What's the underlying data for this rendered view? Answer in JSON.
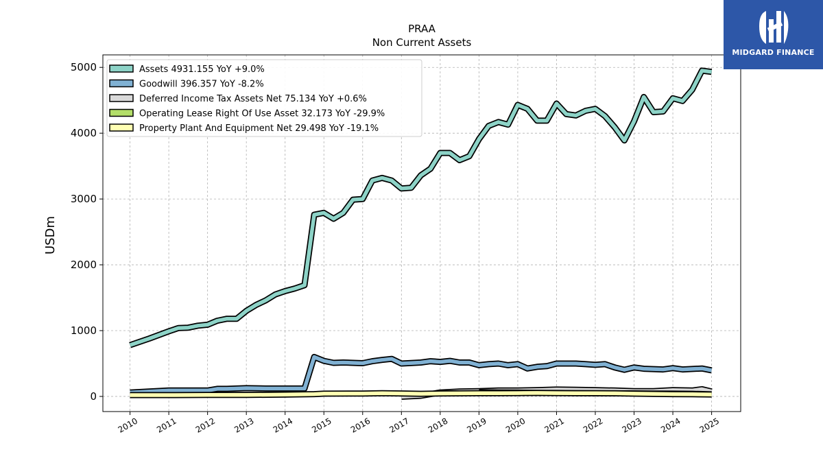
{
  "chart_data": {
    "type": "line",
    "title": "PRAA",
    "subtitle": "Non Current  Assets",
    "ylabel": "USDm",
    "ylim": [
      -230,
      5190
    ],
    "xlim": [
      2009.3,
      2025.75
    ],
    "yticks": [
      0,
      1000,
      2000,
      3000,
      4000,
      5000
    ],
    "xticks": [
      "2010",
      "2011",
      "2012",
      "2013",
      "2014",
      "2015",
      "2016",
      "2017",
      "2018",
      "2019",
      "2020",
      "2021",
      "2022",
      "2023",
      "2024",
      "2025"
    ],
    "grid": true,
    "legend_position": "upper-left",
    "series": [
      {
        "name": "Assets  4931.155 YoY +9.0%",
        "color": "#8dd3c7",
        "points": [
          [
            2010.0,
            780
          ],
          [
            2010.5,
            880
          ],
          [
            2011.0,
            990
          ],
          [
            2011.25,
            1040
          ],
          [
            2011.5,
            1045
          ],
          [
            2011.75,
            1075
          ],
          [
            2012.0,
            1090
          ],
          [
            2012.25,
            1150
          ],
          [
            2012.5,
            1180
          ],
          [
            2012.75,
            1180
          ],
          [
            2013.0,
            1300
          ],
          [
            2013.25,
            1390
          ],
          [
            2013.5,
            1460
          ],
          [
            2013.75,
            1550
          ],
          [
            2014.0,
            1600
          ],
          [
            2014.25,
            1640
          ],
          [
            2014.5,
            1690
          ],
          [
            2014.75,
            2760
          ],
          [
            2015.0,
            2790
          ],
          [
            2015.25,
            2700
          ],
          [
            2015.5,
            2790
          ],
          [
            2015.75,
            2990
          ],
          [
            2016.0,
            3000
          ],
          [
            2016.25,
            3280
          ],
          [
            2016.5,
            3320
          ],
          [
            2016.75,
            3280
          ],
          [
            2017.0,
            3160
          ],
          [
            2017.25,
            3170
          ],
          [
            2017.5,
            3360
          ],
          [
            2017.75,
            3460
          ],
          [
            2018.0,
            3700
          ],
          [
            2018.25,
            3700
          ],
          [
            2018.5,
            3590
          ],
          [
            2018.75,
            3650
          ],
          [
            2019.0,
            3910
          ],
          [
            2019.25,
            4110
          ],
          [
            2019.5,
            4170
          ],
          [
            2019.75,
            4130
          ],
          [
            2020.0,
            4430
          ],
          [
            2020.25,
            4370
          ],
          [
            2020.5,
            4190
          ],
          [
            2020.75,
            4190
          ],
          [
            2021.0,
            4450
          ],
          [
            2021.25,
            4290
          ],
          [
            2021.5,
            4270
          ],
          [
            2021.75,
            4340
          ],
          [
            2022.0,
            4370
          ],
          [
            2022.25,
            4260
          ],
          [
            2022.5,
            4090
          ],
          [
            2022.75,
            3890
          ],
          [
            2023.0,
            4180
          ],
          [
            2023.25,
            4550
          ],
          [
            2023.5,
            4320
          ],
          [
            2023.75,
            4330
          ],
          [
            2024.0,
            4530
          ],
          [
            2024.25,
            4490
          ],
          [
            2024.5,
            4660
          ],
          [
            2024.75,
            4950
          ],
          [
            2025.0,
            4931
          ]
        ]
      },
      {
        "name": "Goodwill  396.357 YoY -8.2%",
        "color": "#80b1d3",
        "points": [
          [
            2010.0,
            60
          ],
          [
            2010.5,
            75
          ],
          [
            2011.0,
            90
          ],
          [
            2011.5,
            90
          ],
          [
            2012.0,
            90
          ],
          [
            2012.25,
            115
          ],
          [
            2012.5,
            115
          ],
          [
            2013.0,
            125
          ],
          [
            2013.5,
            120
          ],
          [
            2014.0,
            120
          ],
          [
            2014.5,
            120
          ],
          [
            2014.75,
            600
          ],
          [
            2015.0,
            540
          ],
          [
            2015.25,
            510
          ],
          [
            2015.5,
            515
          ],
          [
            2015.75,
            510
          ],
          [
            2016.0,
            505
          ],
          [
            2016.25,
            535
          ],
          [
            2016.5,
            555
          ],
          [
            2016.75,
            570
          ],
          [
            2017.0,
            500
          ],
          [
            2017.5,
            515
          ],
          [
            2017.75,
            535
          ],
          [
            2018.0,
            525
          ],
          [
            2018.25,
            540
          ],
          [
            2018.5,
            515
          ],
          [
            2018.75,
            515
          ],
          [
            2019.0,
            475
          ],
          [
            2019.25,
            490
          ],
          [
            2019.5,
            500
          ],
          [
            2019.75,
            475
          ],
          [
            2020.0,
            490
          ],
          [
            2020.25,
            425
          ],
          [
            2020.5,
            450
          ],
          [
            2020.75,
            460
          ],
          [
            2021.0,
            500
          ],
          [
            2021.5,
            500
          ],
          [
            2021.75,
            490
          ],
          [
            2022.0,
            480
          ],
          [
            2022.25,
            490
          ],
          [
            2022.5,
            440
          ],
          [
            2022.75,
            405
          ],
          [
            2023.0,
            440
          ],
          [
            2023.25,
            420
          ],
          [
            2023.75,
            410
          ],
          [
            2024.0,
            430
          ],
          [
            2024.25,
            410
          ],
          [
            2024.75,
            425
          ],
          [
            2025.0,
            396
          ]
        ]
      },
      {
        "name": "Deferred Income Tax Assets Net  75.134 YoY +0.6%",
        "color": "#d9d9d9",
        "points": [
          [
            2017.0,
            -5
          ],
          [
            2017.5,
            10
          ],
          [
            2018.0,
            60
          ],
          [
            2018.5,
            75
          ],
          [
            2019.0,
            80
          ],
          [
            2019.5,
            90
          ],
          [
            2020.0,
            90
          ],
          [
            2020.5,
            95
          ],
          [
            2021.0,
            105
          ],
          [
            2021.5,
            100
          ],
          [
            2022.0,
            95
          ],
          [
            2022.5,
            90
          ],
          [
            2023.0,
            80
          ],
          [
            2023.5,
            80
          ],
          [
            2024.0,
            95
          ],
          [
            2024.5,
            90
          ],
          [
            2024.75,
            110
          ],
          [
            2025.0,
            75
          ]
        ]
      },
      {
        "name": "Operating Lease Right Of Use Asset  32.173 YoY -29.9%",
        "color": "#b3de69",
        "points": [
          [
            2019.0,
            65
          ],
          [
            2019.5,
            60
          ],
          [
            2020.0,
            58
          ],
          [
            2020.5,
            55
          ],
          [
            2021.0,
            52
          ],
          [
            2021.5,
            50
          ],
          [
            2022.0,
            48
          ],
          [
            2022.5,
            47
          ],
          [
            2023.0,
            46
          ],
          [
            2023.5,
            44
          ],
          [
            2024.0,
            42
          ],
          [
            2024.5,
            40
          ],
          [
            2025.0,
            32
          ]
        ]
      },
      {
        "name": "Property Plant And Equipment Net  29.498 YoY -19.1%",
        "color": "#ffffb3",
        "points": [
          [
            2010.0,
            20
          ],
          [
            2011.0,
            20
          ],
          [
            2012.0,
            22
          ],
          [
            2013.0,
            22
          ],
          [
            2014.0,
            28
          ],
          [
            2014.75,
            35
          ],
          [
            2015.0,
            42
          ],
          [
            2016.0,
            44
          ],
          [
            2016.5,
            48
          ],
          [
            2017.0,
            45
          ],
          [
            2017.5,
            40
          ],
          [
            2018.0,
            45
          ],
          [
            2019.0,
            48
          ],
          [
            2019.5,
            48
          ],
          [
            2020.0,
            50
          ],
          [
            2020.5,
            52
          ],
          [
            2021.0,
            50
          ],
          [
            2021.5,
            48
          ],
          [
            2022.0,
            48
          ],
          [
            2022.5,
            47
          ],
          [
            2023.0,
            42
          ],
          [
            2023.5,
            38
          ],
          [
            2024.0,
            35
          ],
          [
            2024.5,
            33
          ],
          [
            2025.0,
            29.5
          ]
        ]
      }
    ]
  },
  "logo": {
    "text": "MIDGARD FINANCE"
  }
}
